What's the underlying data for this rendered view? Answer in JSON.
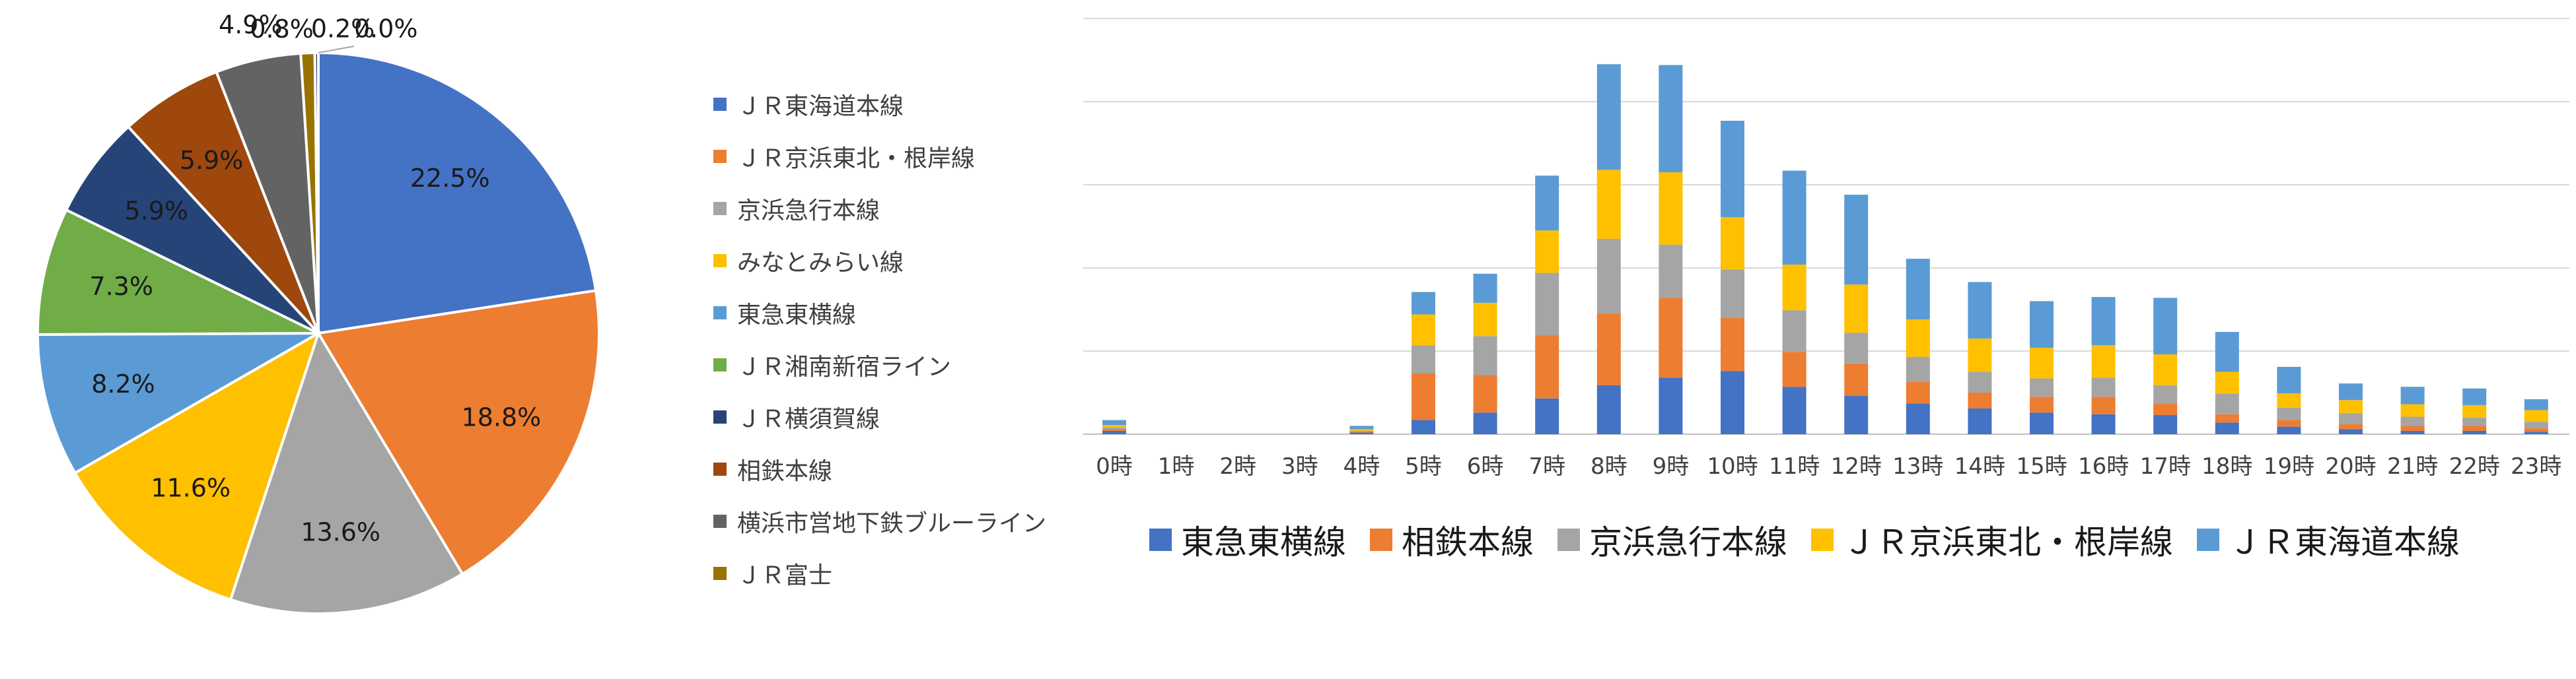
{
  "chart_data": [
    {
      "type": "pie",
      "title": "",
      "legend_position": "right",
      "slices": [
        {
          "label": "ＪＲ東海道本線",
          "value": 22.5,
          "value_label": "22.5%",
          "color": "#4472C4"
        },
        {
          "label": "ＪＲ京浜東北・根岸線",
          "value": 18.8,
          "value_label": "18.8%",
          "color": "#ED7D31"
        },
        {
          "label": "京浜急行本線",
          "value": 13.6,
          "value_label": "13.6%",
          "color": "#A5A5A5"
        },
        {
          "label": "みなとみらい線",
          "value": 11.6,
          "value_label": "11.6%",
          "color": "#FFC000"
        },
        {
          "label": "東急東横線",
          "value": 8.2,
          "value_label": "8.2%",
          "color": "#5B9BD5"
        },
        {
          "label": "ＪＲ湘南新宿ライン",
          "value": 7.3,
          "value_label": "7.3%",
          "color": "#70AD47"
        },
        {
          "label": "ＪＲ横須賀線",
          "value": 5.9,
          "value_label": "5.9%",
          "color": "#264478"
        },
        {
          "label": "相鉄本線",
          "value": 5.9,
          "value_label": "5.9%",
          "color": "#9E480E"
        },
        {
          "label": "横浜市営地下鉄ブルーライン",
          "value": 4.9,
          "value_label": "4.9%",
          "color": "#636363"
        },
        {
          "label": "ＪＲ富士",
          "value": 0.8,
          "value_label": "0.8%",
          "color": "#997300"
        },
        {
          "label": "",
          "value": 0.2,
          "value_label": "0.2%",
          "color": "#1F3864"
        },
        {
          "label": "",
          "value": 0.0,
          "value_label": "0.0%",
          "color": "#4472C4"
        }
      ]
    },
    {
      "type": "bar",
      "stacked": true,
      "title": "",
      "xlabel": "",
      "ylabel": "",
      "grid": true,
      "legend_position": "bottom",
      "ylim": [
        0,
        50
      ],
      "categories": [
        "0時",
        "1時",
        "2時",
        "3時",
        "4時",
        "5時",
        "6時",
        "7時",
        "8時",
        "9時",
        "10時",
        "11時",
        "12時",
        "13時",
        "14時",
        "15時",
        "16時",
        "17時",
        "18時",
        "19時",
        "20時",
        "21時",
        "22時",
        "23時"
      ],
      "series": [
        {
          "name": "東急東横線",
          "color": "#4472C4",
          "values": [
            0.4,
            0,
            0,
            0,
            0.2,
            1.7,
            2.6,
            4.3,
            5.9,
            6.8,
            7.6,
            5.7,
            4.6,
            3.7,
            3.1,
            2.6,
            2.4,
            2.3,
            1.4,
            0.9,
            0.6,
            0.4,
            0.4,
            0.3
          ]
        },
        {
          "name": "相鉄本線",
          "color": "#ED7D31",
          "values": [
            0.2,
            0,
            0,
            0,
            0.1,
            5.6,
            4.5,
            7.6,
            8.6,
            9.6,
            6.4,
            4.2,
            3.9,
            2.6,
            1.9,
            1.9,
            2.1,
            1.4,
            1.0,
            0.8,
            0.6,
            0.6,
            0.6,
            0.4
          ]
        },
        {
          "name": "京浜急行本線",
          "color": "#A5A5A5",
          "values": [
            0.2,
            0,
            0,
            0,
            0.1,
            3.4,
            4.7,
            7.5,
            9.0,
            6.4,
            5.8,
            5.0,
            3.7,
            3.0,
            2.5,
            2.2,
            2.3,
            2.2,
            2.5,
            1.5,
            1.3,
            1.1,
            1.0,
            0.8
          ]
        },
        {
          "name": "ＪＲ京浜東北・根岸線",
          "color": "#FFC000",
          "values": [
            0.3,
            0,
            0,
            0,
            0.2,
            3.7,
            4.0,
            5.1,
            8.3,
            8.7,
            6.3,
            5.5,
            5.8,
            4.5,
            4.0,
            3.7,
            3.9,
            3.7,
            2.6,
            1.7,
            1.6,
            1.5,
            1.5,
            1.4
          ]
        },
        {
          "name": "ＪＲ東海道本線",
          "color": "#5B9BD5",
          "values": [
            0.6,
            0,
            0,
            0,
            0.4,
            2.7,
            3.5,
            6.6,
            12.7,
            12.9,
            11.6,
            11.3,
            10.8,
            7.3,
            6.8,
            5.6,
            5.8,
            6.8,
            4.8,
            3.2,
            2.0,
            2.1,
            2.0,
            1.3
          ]
        }
      ]
    }
  ]
}
